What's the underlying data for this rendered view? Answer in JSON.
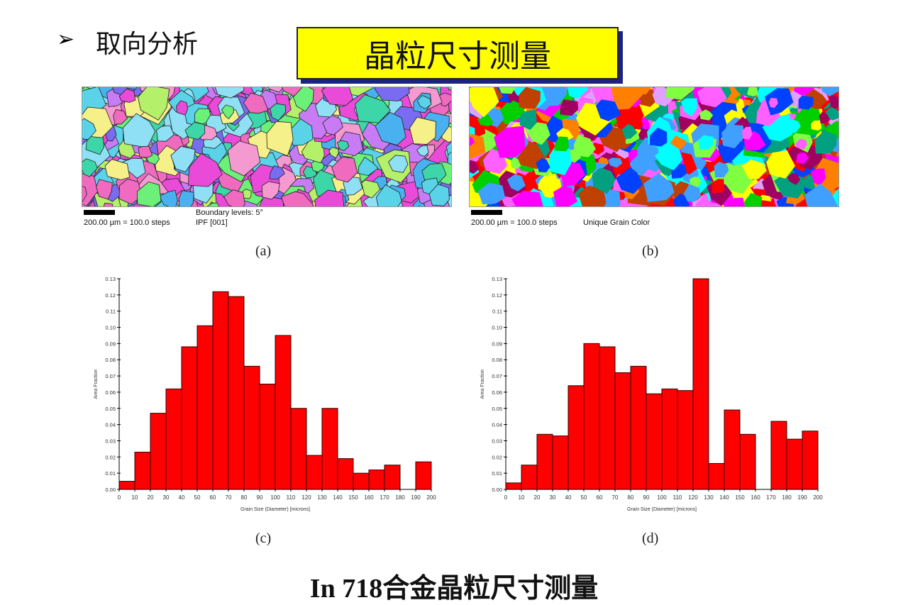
{
  "slide": {
    "bullet": "➢",
    "heading": "取向分析",
    "title_box": "晶粒尺寸测量",
    "footer": "In 718合金晶粒尺寸测量"
  },
  "maps": [
    {
      "scale": "200.00 µm = 100.0 steps",
      "boundary": "Boundary levels: 5°",
      "mode": "IPF [001]",
      "caption": "(a)"
    },
    {
      "scale": "200.00 µm = 100.0 steps",
      "mode": "Unique Grain Color",
      "caption": "(b)"
    }
  ],
  "colors": {
    "bar": "#ff0000",
    "title_box": "#ffff00",
    "title_shadow": "#1a237e"
  },
  "chart_data": [
    {
      "type": "bar",
      "caption": "(c)",
      "xlabel": "Grain Size (Diameter) [microns]",
      "ylabel": "Area Fraction",
      "xlim": [
        0,
        200
      ],
      "ylim": [
        0,
        0.13
      ],
      "bin_width": 10,
      "x": [
        0,
        10,
        20,
        30,
        40,
        50,
        60,
        70,
        80,
        90,
        100,
        110,
        120,
        130,
        140,
        150,
        160,
        170,
        180,
        190
      ],
      "values": [
        0.005,
        0.023,
        0.047,
        0.062,
        0.088,
        0.101,
        0.122,
        0.119,
        0.076,
        0.065,
        0.095,
        0.05,
        0.021,
        0.05,
        0.019,
        0.01,
        0.012,
        0.015,
        0,
        0.017
      ],
      "yticks": [
        "0.00",
        "0.01",
        "0.02",
        "0.03",
        "0.04",
        "0.05",
        "0.06",
        "0.07",
        "0.08",
        "0.09",
        "0.10",
        "0.11",
        "0.12",
        "0.13"
      ],
      "xticks": [
        "0",
        "10",
        "20",
        "30",
        "40",
        "50",
        "60",
        "70",
        "80",
        "90",
        "100",
        "110",
        "120",
        "130",
        "140",
        "150",
        "160",
        "170",
        "180",
        "190",
        "200"
      ]
    },
    {
      "type": "bar",
      "caption": "(d)",
      "xlabel": "Grain Size (Diameter) [microns]",
      "ylabel": "Area Fraction",
      "xlim": [
        0,
        200
      ],
      "ylim": [
        0,
        0.13
      ],
      "bin_width": 10,
      "x": [
        0,
        10,
        20,
        30,
        40,
        50,
        60,
        70,
        80,
        90,
        100,
        110,
        120,
        130,
        140,
        150,
        160,
        170,
        180,
        190
      ],
      "values": [
        0.004,
        0.015,
        0.034,
        0.033,
        0.064,
        0.09,
        0.088,
        0.072,
        0.076,
        0.059,
        0.062,
        0.061,
        0.13,
        0.016,
        0.049,
        0.034,
        0,
        0.042,
        0.031,
        0.036
      ],
      "yticks": [
        "0.00",
        "0.01",
        "0.02",
        "0.03",
        "0.04",
        "0.05",
        "0.06",
        "0.07",
        "0.08",
        "0.09",
        "0.10",
        "0.11",
        "0.12",
        "0.13"
      ],
      "xticks": [
        "0",
        "10",
        "20",
        "30",
        "40",
        "50",
        "60",
        "70",
        "80",
        "90",
        "100",
        "110",
        "120",
        "130",
        "140",
        "150",
        "160",
        "170",
        "180",
        "190",
        "200"
      ]
    }
  ]
}
